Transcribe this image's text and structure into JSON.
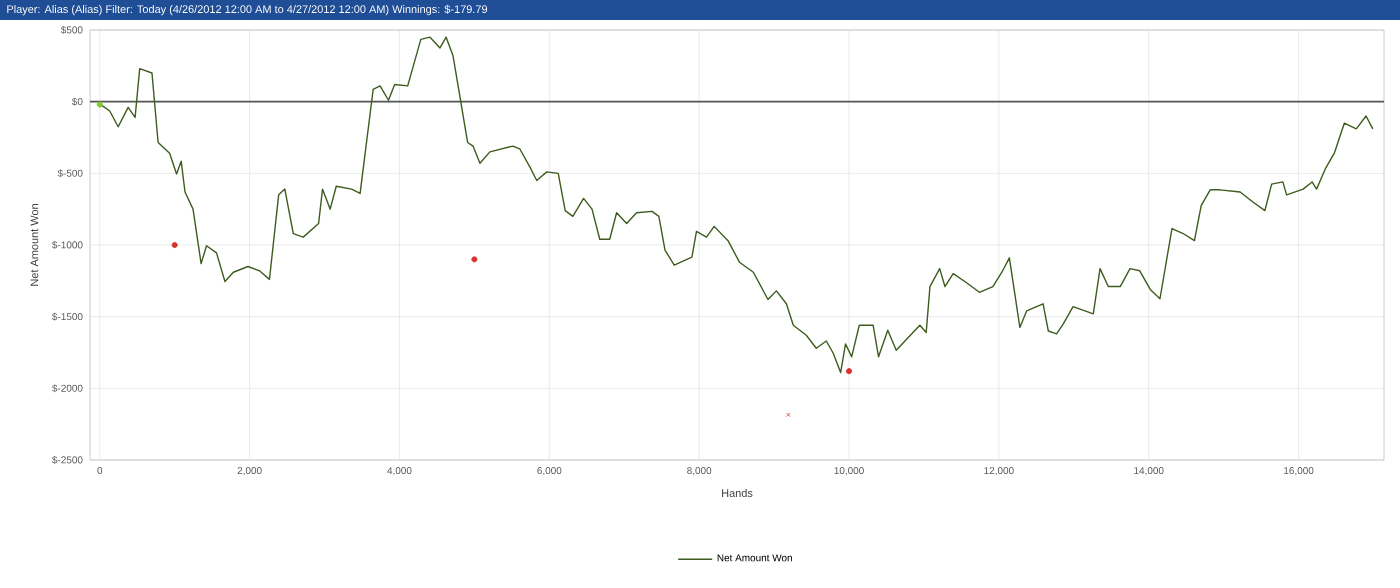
{
  "chart_data": {
    "type": "line",
    "title": "Player: Alias (Alias) Filter: Today (4/26/2012 12:00 AM to 4/27/2012 12:00 AM) Winnings: $-179.79",
    "xlabel": "Hands",
    "ylabel": "Net Amount Won",
    "xlim": [
      -130,
      17140
    ],
    "ylim": [
      -2500,
      500
    ],
    "xticks": [
      0,
      {
        "value": 2000,
        "label": "2,000"
      },
      {
        "value": 4000,
        "label": "4,000"
      },
      {
        "value": 6000,
        "label": "6,000"
      },
      {
        "value": 8000,
        "label": "8,000"
      },
      {
        "value": 10000,
        "label": "10,000"
      },
      {
        "value": 12000,
        "label": "12,000"
      },
      {
        "value": 14000,
        "label": "14,000"
      },
      {
        "value": 16000,
        "label": "16,000"
      }
    ],
    "yticks": [
      {
        "value": -2500,
        "label": "$-2500"
      },
      {
        "value": -2000,
        "label": "$-2000"
      },
      {
        "value": -1500,
        "label": "$-1500"
      },
      {
        "value": -1000,
        "label": "$-1000"
      },
      {
        "value": -500,
        "label": "$-500"
      },
      {
        "value": 0,
        "label": "$0"
      },
      {
        "value": 500,
        "label": "$500"
      }
    ],
    "grid": true,
    "legend": "bottom",
    "marker": "none",
    "line_style": "solid",
    "ref_lines": [
      {
        "axis": "y",
        "value": 0,
        "color": "#555555"
      }
    ],
    "series": [
      {
        "name": "Net Amount Won",
        "color": "#3d5c1e",
        "x": [
          0,
          133,
          246,
          379,
          472,
          533,
          697,
          779,
          933,
          1025,
          1087,
          1138,
          1245,
          1353,
          1425,
          1558,
          1671,
          1784,
          1978,
          2132,
          2265,
          2388,
          2470,
          2583,
          2716,
          2921,
          2973,
          3075,
          3157,
          3362,
          3475,
          3649,
          3741,
          3854,
          3936,
          4110,
          4285,
          4408,
          4541,
          4623,
          4715,
          4807,
          4910,
          4982,
          5074,
          5207,
          5514,
          5607,
          5740,
          5832,
          5966,
          6119,
          6212,
          6314,
          6458,
          6570,
          6673,
          6806,
          6898,
          7032,
          7165,
          7370,
          7462,
          7544,
          7667,
          7903,
          7964,
          8098,
          8200,
          8385,
          8538,
          8723,
          8918,
          9030,
          9164,
          9256,
          9430,
          9563,
          9697,
          9789,
          9888,
          9953,
          10035,
          10137,
          10322,
          10394,
          10517,
          10630,
          10945,
          11030,
          11080,
          11210,
          11280,
          11390,
          11560,
          11740,
          11920,
          12050,
          12140,
          12280,
          12370,
          12590,
          12660,
          12770,
          12860,
          12990,
          13260,
          13350,
          13460,
          13620,
          13750,
          13880,
          14020,
          14150,
          14310,
          14460,
          14610,
          14700,
          14820,
          14950,
          15220,
          15390,
          15550,
          15640,
          15790,
          15840,
          16060,
          16180,
          16240,
          16360,
          16480,
          16610,
          16770,
          16900,
          16990
        ],
        "values": [
          -15,
          -65,
          -175,
          -40,
          -110,
          230,
          200,
          -285,
          -360,
          -505,
          -415,
          -630,
          -750,
          -1130,
          -1005,
          -1055,
          -1255,
          -1190,
          -1150,
          -1180,
          -1240,
          -650,
          -610,
          -920,
          -945,
          -850,
          -610,
          -750,
          -590,
          -610,
          -640,
          85,
          110,
          10,
          120,
          110,
          435,
          450,
          375,
          450,
          320,
          35,
          -285,
          -310,
          -430,
          -350,
          -310,
          -330,
          -455,
          -550,
          -490,
          -500,
          -760,
          -800,
          -675,
          -750,
          -960,
          -960,
          -775,
          -850,
          -775,
          -765,
          -800,
          -1035,
          -1140,
          -1085,
          -905,
          -945,
          -870,
          -970,
          -1120,
          -1190,
          -1380,
          -1320,
          -1410,
          -1560,
          -1630,
          -1720,
          -1670,
          -1755,
          -1890,
          -1690,
          -1780,
          -1560,
          -1560,
          -1780,
          -1595,
          -1735,
          -1560,
          -1610,
          -1290,
          -1165,
          -1290,
          -1200,
          -1260,
          -1330,
          -1290,
          -1180,
          -1090,
          -1575,
          -1460,
          -1410,
          -1600,
          -1620,
          -1550,
          -1430,
          -1480,
          -1165,
          -1290,
          -1290,
          -1165,
          -1180,
          -1310,
          -1375,
          -885,
          -920,
          -970,
          -725,
          -615,
          -615,
          -630,
          -700,
          -760,
          -575,
          -560,
          -650,
          -610,
          -560,
          -610,
          -465,
          -355,
          -150,
          -190,
          -100,
          -190
        ]
      },
      {
        "type": "scatter",
        "marker": "circle",
        "color": "#7ccf2a",
        "x": [
          0
        ],
        "values": [
          -20
        ]
      },
      {
        "type": "scatter",
        "marker": "circle",
        "color": "#d9302c",
        "x": [
          1000,
          5000,
          10000
        ],
        "values": [
          -1000,
          -1100,
          -1880
        ]
      },
      {
        "type": "scatter",
        "marker": "cross",
        "color": "#d9302c",
        "x": [
          9190
        ],
        "values": [
          -2185
        ]
      }
    ]
  }
}
